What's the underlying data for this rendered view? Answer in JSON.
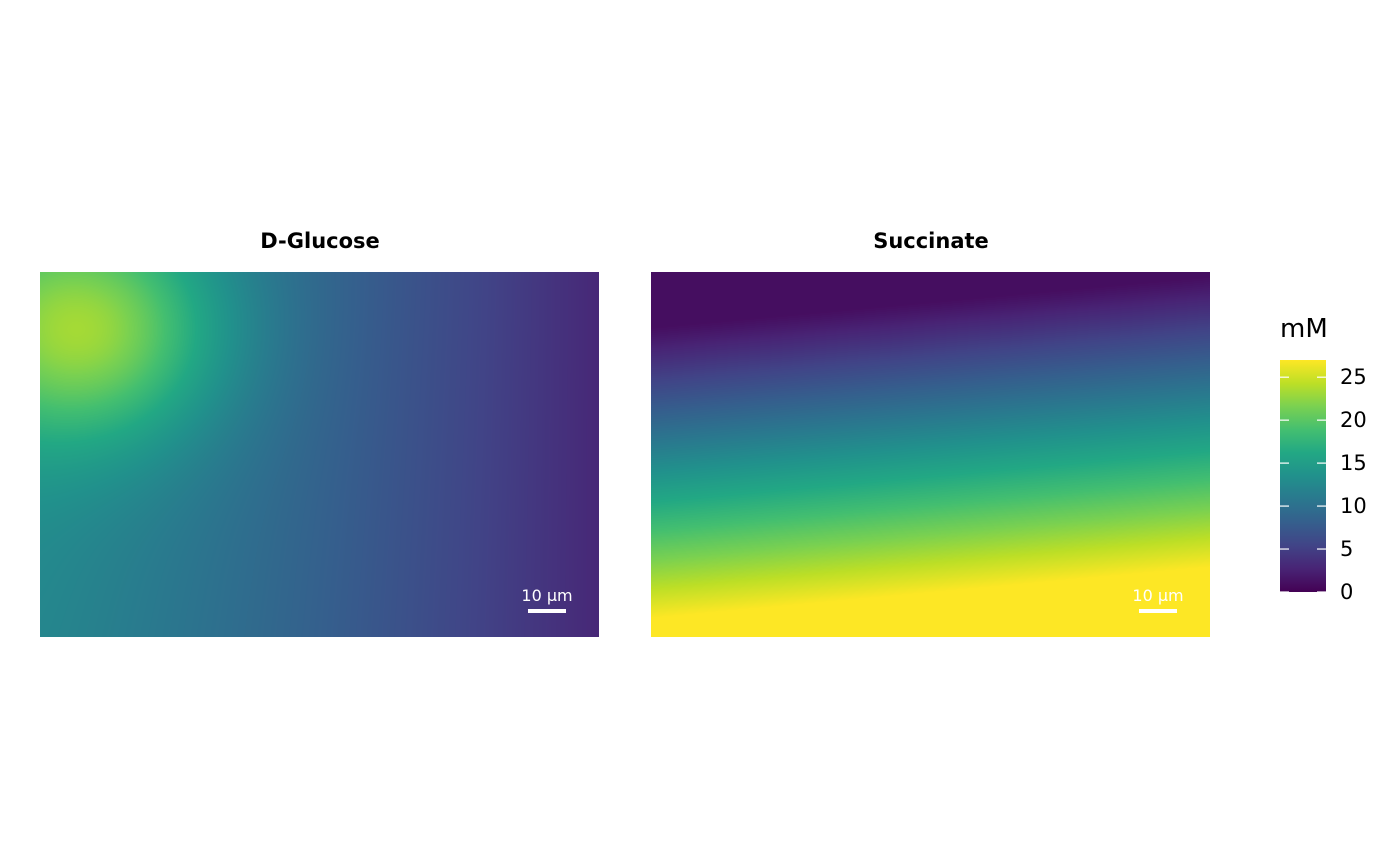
{
  "chart_data": {
    "type": "heatmap",
    "colormap": "viridis",
    "panels": [
      {
        "title": "D-Glucose",
        "scalebar_label": "10 µm",
        "value_range": [
          0,
          27
        ],
        "description_field": "peak near top-left, decreasing to the right"
      },
      {
        "title": "Succinate",
        "scalebar_label": "10 µm",
        "value_range": [
          0,
          27
        ],
        "description_field": "low at top, rising to saturation at bottom"
      }
    ],
    "legend": {
      "title": "mM",
      "ticks": [
        0,
        5,
        10,
        15,
        20,
        25
      ],
      "tick_labels": [
        "0",
        "5",
        "10",
        "15",
        "20",
        "25"
      ],
      "range": [
        0,
        27
      ],
      "placement": "right"
    }
  }
}
